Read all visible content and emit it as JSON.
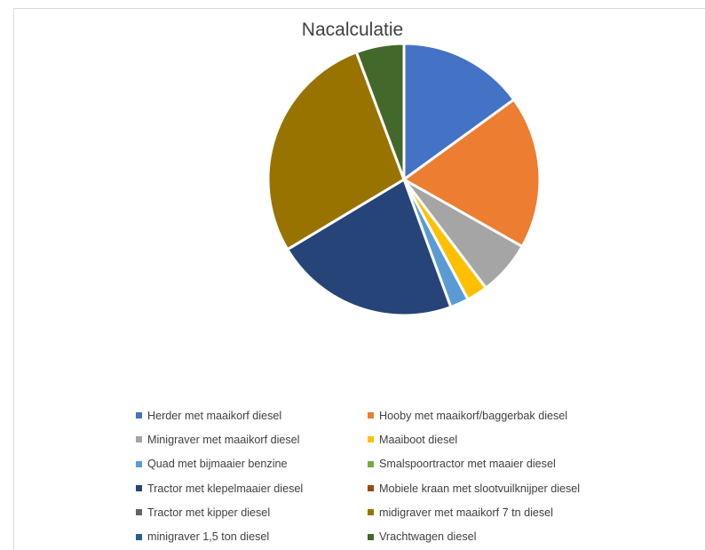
{
  "chart_data": {
    "type": "pie",
    "title": "Nacalculatie",
    "legend_position": "bottom",
    "slices": [
      {
        "label": "Herder met maaikorf diesel",
        "value": 15.0,
        "color": "#4472C4"
      },
      {
        "label": "Hooby met maaikorf/baggerbak diesel",
        "value": 18.2,
        "color": "#ED7D31"
      },
      {
        "label": "Minigraver met maaikorf diesel",
        "value": 6.5,
        "color": "#A5A5A5"
      },
      {
        "label": "Maaiboot diesel",
        "value": 2.5,
        "color": "#FFC000"
      },
      {
        "label": "Quad met bijmaaier benzine",
        "value": 2.2,
        "color": "#5B9BD5"
      },
      {
        "label": "Smalspoortractor met maaier diesel",
        "value": 0,
        "color": "#70AD47"
      },
      {
        "label": "Tractor met klepelmaaier diesel",
        "value": 22.0,
        "color": "#264478"
      },
      {
        "label": "Mobiele kraan met slootvuilknijper diesel",
        "value": 0,
        "color": "#9E480E"
      },
      {
        "label": "Tractor met kipper diesel",
        "value": 0,
        "color": "#636363"
      },
      {
        "label": "midigraver met maaikorf 7 tn diesel",
        "value": 27.9,
        "color": "#997300"
      },
      {
        "label": "minigraver 1,5 ton diesel",
        "value": 0,
        "color": "#255E91"
      },
      {
        "label": "Vrachtwagen diesel",
        "value": 5.7,
        "color": "#43682B"
      }
    ]
  }
}
